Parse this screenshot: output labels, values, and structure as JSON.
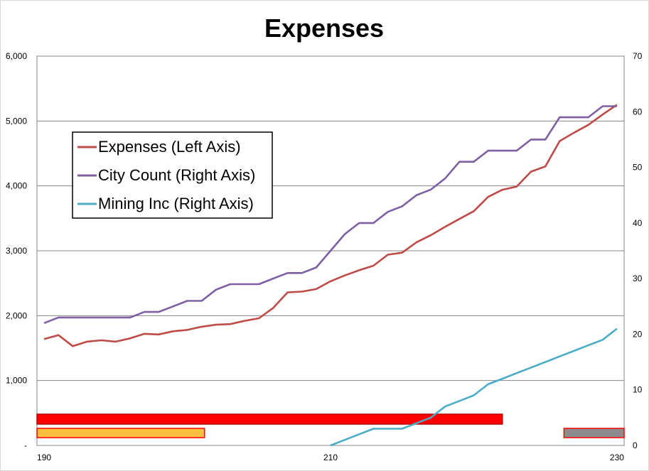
{
  "chart_data": {
    "type": "line",
    "title": "Expenses",
    "x": [
      190,
      191,
      192,
      193,
      194,
      195,
      196,
      197,
      198,
      199,
      200,
      201,
      202,
      203,
      204,
      205,
      206,
      207,
      208,
      209,
      210,
      211,
      212,
      213,
      214,
      215,
      216,
      217,
      218,
      219,
      220,
      221,
      222,
      223,
      224,
      225,
      226,
      227,
      228,
      229,
      230
    ],
    "x_ticks": [
      "190",
      "210",
      "230"
    ],
    "xlim": [
      189.5,
      230.5
    ],
    "y_left_ticks": [
      "-",
      "1,000",
      "2,000",
      "3,000",
      "4,000",
      "5,000",
      "6,000"
    ],
    "y_left_lim": [
      0,
      6000
    ],
    "y_right_ticks": [
      "0",
      "10",
      "20",
      "30",
      "40",
      "50",
      "60",
      "70"
    ],
    "y_right_lim": [
      0,
      70
    ],
    "grid": "horizontal",
    "legend_position": "upper-left",
    "series": [
      {
        "name": "Expenses (Left Axis)",
        "axis": "left",
        "color": "#be4b48",
        "values": [
          1640,
          1700,
          1530,
          1600,
          1620,
          1600,
          1650,
          1720,
          1710,
          1760,
          1780,
          1830,
          1860,
          1870,
          1920,
          1960,
          2120,
          2360,
          2370,
          2410,
          2530,
          2620,
          2700,
          2770,
          2940,
          2970,
          3130,
          3240,
          3370,
          3490,
          3610,
          3830,
          3940,
          3990,
          4220,
          4300,
          4690,
          4820,
          4940,
          5100,
          5250
        ]
      },
      {
        "name": "City Count (Right Axis)",
        "axis": "right",
        "color": "#7e60a2",
        "values": [
          22,
          23,
          23,
          23,
          23,
          23,
          23,
          24,
          24,
          25,
          26,
          26,
          28,
          29,
          29,
          29,
          30,
          31,
          31,
          32,
          35,
          38,
          40,
          40,
          42,
          43,
          45,
          46,
          48,
          51,
          51,
          53,
          53,
          53,
          55,
          55,
          59,
          59,
          59,
          61,
          61
        ]
      },
      {
        "name": "Mining Inc (Right Axis)",
        "axis": "right",
        "color": "#4bacc6",
        "values": [
          null,
          null,
          null,
          null,
          null,
          null,
          null,
          null,
          null,
          null,
          null,
          null,
          null,
          null,
          null,
          null,
          null,
          null,
          null,
          null,
          0,
          1,
          2,
          3,
          3,
          3,
          4,
          5,
          7,
          8,
          9,
          11,
          12,
          13,
          14,
          15,
          16,
          17,
          18,
          19,
          21
        ]
      }
    ],
    "bars": [
      {
        "x_start": 189.5,
        "x_end": 222,
        "fill": "#ff0000",
        "stroke": "#c00000",
        "row": 1
      },
      {
        "x_start": 189.5,
        "x_end": 201.2,
        "fill": "#ffc040",
        "stroke": "#ff0000",
        "row": 2
      },
      {
        "x_start": 226.3,
        "x_end": 230.5,
        "fill": "#8c8c8c",
        "stroke": "#ff0000",
        "row": 2
      }
    ]
  }
}
